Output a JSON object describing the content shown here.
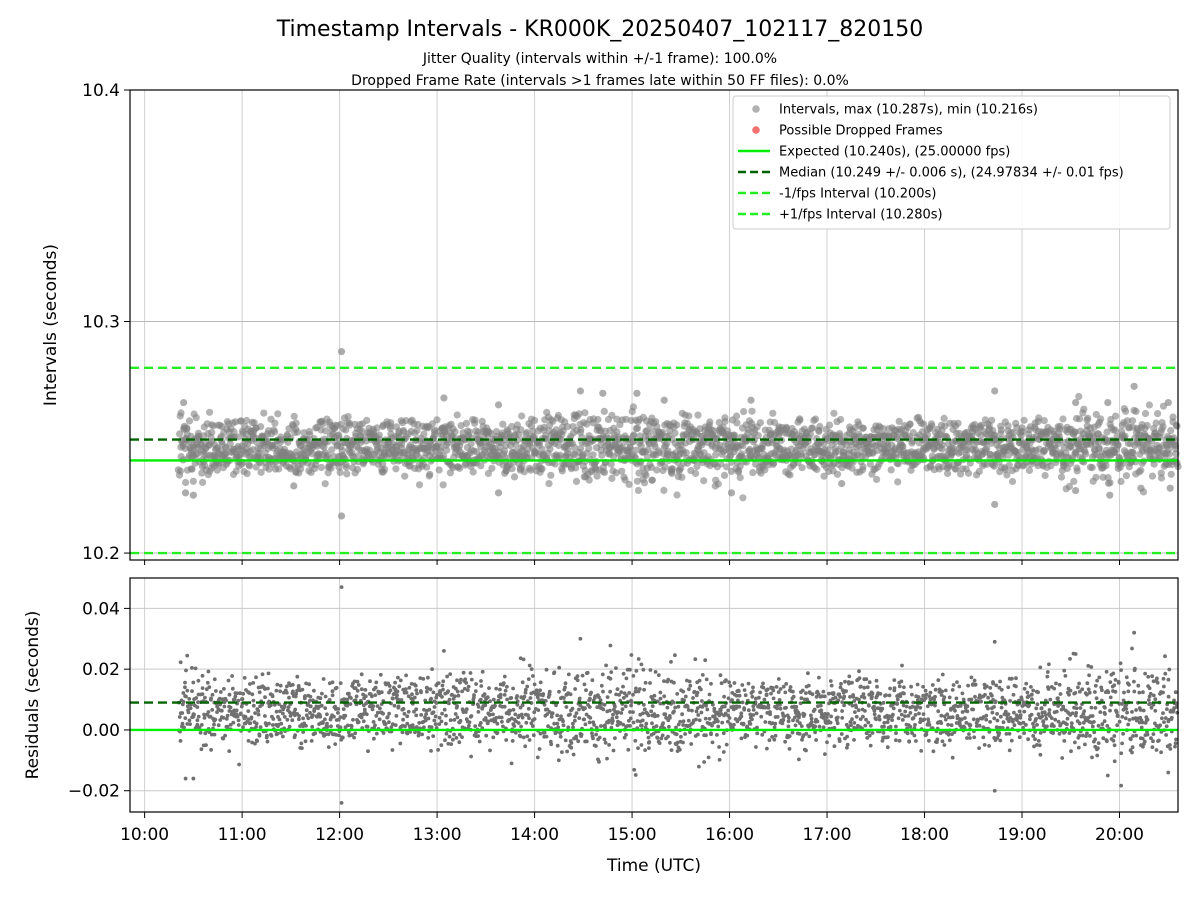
{
  "chart_data": [
    {
      "type": "scatter",
      "title": "Timestamp Intervals - KR000K_20250407_102117_820150",
      "subtitle_lines": [
        "Jitter Quality (intervals within +/-1 frame): 100.0%",
        "Dropped Frame Rate (intervals >1 frames late within 50 FF files): 0.0%"
      ],
      "ylabel": "Intervals (seconds)",
      "ylim": [
        10.197,
        10.4
      ],
      "yticks": [
        10.2,
        10.3,
        10.4
      ],
      "ytick_labels": [
        "10.2",
        "10.3",
        "10.4"
      ],
      "xlim_hours": [
        9.85,
        20.6
      ],
      "xticks_hours": [
        10,
        11,
        12,
        13,
        14,
        15,
        16,
        17,
        18,
        19,
        20
      ],
      "grid": true,
      "legend_position": "top-right",
      "legend": [
        {
          "label": "Intervals, max (10.287s), min (10.216s)",
          "kind": "marker",
          "color": "#a9a9a9"
        },
        {
          "label": "Possible Dropped Frames",
          "kind": "marker",
          "color": "#f06060"
        },
        {
          "label": "Expected (10.240s), (25.00000 fps)",
          "kind": "solid",
          "color": "#00ee00"
        },
        {
          "label": "Median (10.249 +/- 0.006 s), (24.97834 +/- 0.01 fps)",
          "kind": "dashed",
          "color": "#006400"
        },
        {
          "label": "-1/fps Interval (10.200s)",
          "kind": "dashed",
          "color": "#22ee22"
        },
        {
          "label": "+1/fps Interval (10.280s)",
          "kind": "dashed",
          "color": "#22ee22"
        }
      ],
      "reference_lines": {
        "expected": 10.24,
        "median": 10.249,
        "minus_one_fps": 10.2,
        "plus_one_fps": 10.28
      },
      "max_interval": 10.287,
      "min_interval": 10.216,
      "data_start_hour": 10.35,
      "data_end_hour": 20.6,
      "points": [
        {
          "x": 10.4,
          "y": 10.265
        },
        {
          "x": 10.42,
          "y": 10.226
        },
        {
          "x": 10.5,
          "y": 10.225
        },
        {
          "x": 12.02,
          "y": 10.287
        },
        {
          "x": 12.02,
          "y": 10.216
        },
        {
          "x": 11.53,
          "y": 10.229
        },
        {
          "x": 13.07,
          "y": 10.267
        },
        {
          "x": 13.63,
          "y": 10.264
        },
        {
          "x": 14.47,
          "y": 10.27
        },
        {
          "x": 14.7,
          "y": 10.269
        },
        {
          "x": 15.05,
          "y": 10.269
        },
        {
          "x": 15.33,
          "y": 10.266
        },
        {
          "x": 16.22,
          "y": 10.266
        },
        {
          "x": 16.02,
          "y": 10.226
        },
        {
          "x": 13.63,
          "y": 10.226
        },
        {
          "x": 17.15,
          "y": 10.23
        },
        {
          "x": 18.72,
          "y": 10.27
        },
        {
          "x": 18.72,
          "y": 10.221
        },
        {
          "x": 19.55,
          "y": 10.265
        },
        {
          "x": 19.55,
          "y": 10.227
        },
        {
          "x": 19.88,
          "y": 10.265
        },
        {
          "x": 19.9,
          "y": 10.225
        },
        {
          "x": 20.15,
          "y": 10.272
        },
        {
          "x": 20.22,
          "y": 10.228
        },
        {
          "x": 20.5,
          "y": 10.265
        },
        {
          "x": 20.52,
          "y": 10.228
        }
      ]
    },
    {
      "type": "scatter",
      "ylabel": "Residuals (seconds)",
      "xlabel": "Time (UTC)",
      "ylim": [
        -0.027,
        0.05
      ],
      "yticks": [
        -0.02,
        0,
        0.02,
        0.04
      ],
      "ytick_labels": [
        "−0.02",
        "0.00",
        "0.02",
        "0.04"
      ],
      "xlim_hours": [
        9.85,
        20.6
      ],
      "xticks_hours": [
        10,
        11,
        12,
        13,
        14,
        15,
        16,
        17,
        18,
        19,
        20
      ],
      "xtick_labels": [
        "10:00",
        "11:00",
        "12:00",
        "13:00",
        "14:00",
        "15:00",
        "16:00",
        "17:00",
        "18:00",
        "19:00",
        "20:00"
      ],
      "grid": true,
      "reference_lines": {
        "zero": 0,
        "median": 0.009
      },
      "points": [
        {
          "x": 12.02,
          "y": 0.047
        },
        {
          "x": 12.02,
          "y": -0.024
        },
        {
          "x": 14.47,
          "y": 0.03
        },
        {
          "x": 18.72,
          "y": 0.029
        },
        {
          "x": 18.72,
          "y": -0.02
        },
        {
          "x": 20.15,
          "y": 0.032
        },
        {
          "x": 10.42,
          "y": -0.016
        },
        {
          "x": 10.5,
          "y": -0.016
        },
        {
          "x": 13.07,
          "y": 0.026
        },
        {
          "x": 19.55,
          "y": 0.025
        },
        {
          "x": 19.88,
          "y": -0.015
        },
        {
          "x": 20.5,
          "y": -0.014
        }
      ]
    }
  ]
}
